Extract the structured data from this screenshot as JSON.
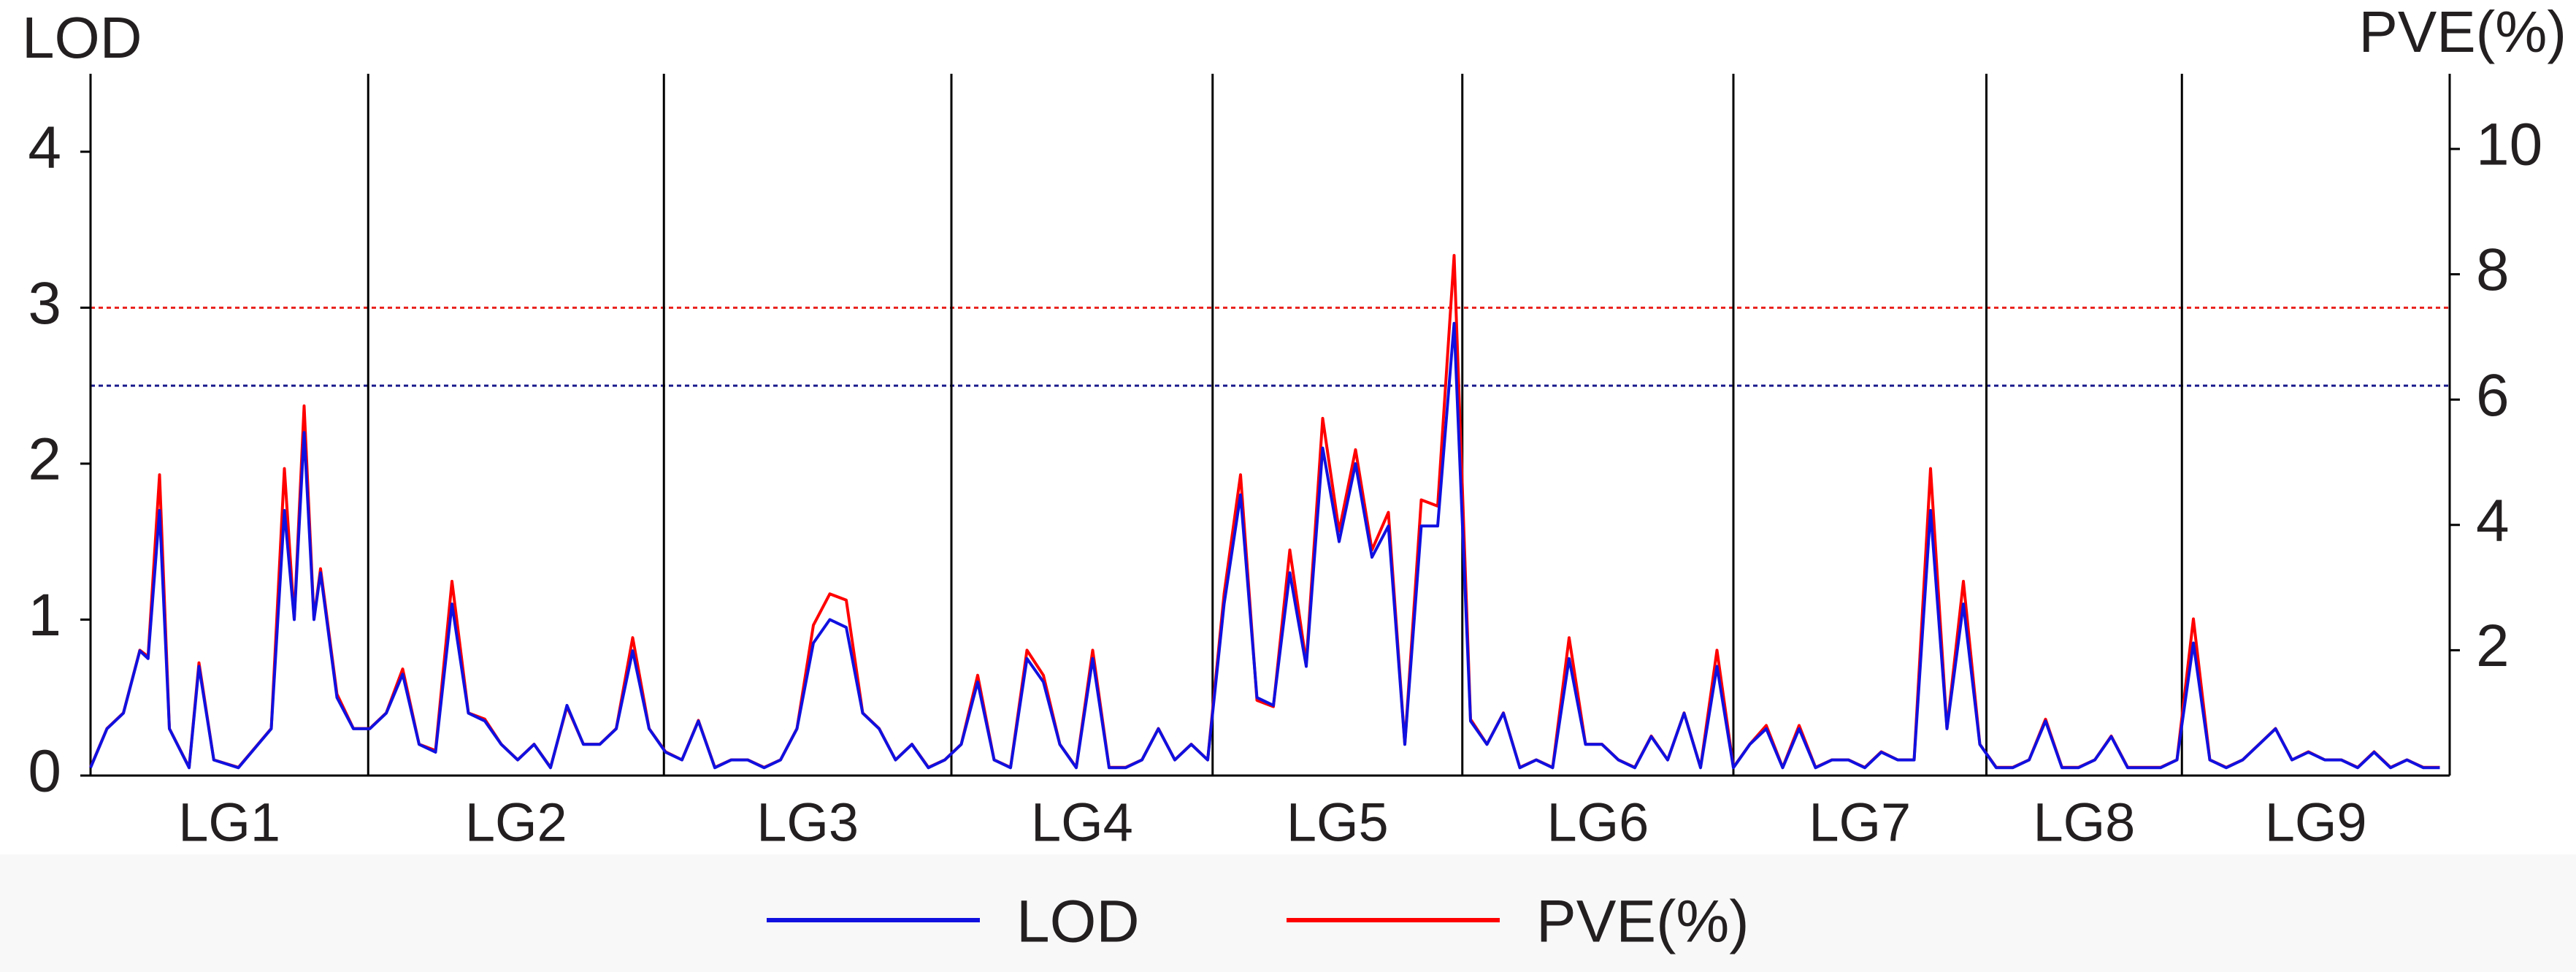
{
  "chart_data": {
    "type": "line",
    "ylabel": "LOD",
    "y2label": "PVE(%)",
    "ylim": [
      0,
      4.5
    ],
    "yticks": [
      0,
      1,
      2,
      3,
      4
    ],
    "y2lim": [
      0,
      11.2
    ],
    "y2ticks": [
      2,
      4,
      6,
      8,
      10
    ],
    "xlim": [
      0,
      1436
    ],
    "categories": [
      "LG1",
      "LG2",
      "LG3",
      "LG4",
      "LG5",
      "LG6",
      "LG7",
      "LG8",
      "LG9"
    ],
    "boundaries": [
      169,
      349,
      524,
      683,
      835,
      1000,
      1154,
      1273
    ],
    "thresholds": [
      {
        "value": 3,
        "color": "#e8201c"
      },
      {
        "value": 2.5,
        "color": "#1a1a8c"
      }
    ],
    "x": [
      0,
      10,
      20,
      30,
      35,
      42,
      48,
      60,
      66,
      75,
      90,
      110,
      118,
      124,
      130,
      136,
      140,
      150,
      160,
      170,
      180,
      190,
      200,
      210,
      220,
      230,
      240,
      250,
      260,
      270,
      280,
      290,
      300,
      310,
      320,
      330,
      340,
      350,
      360,
      370,
      380,
      390,
      400,
      410,
      420,
      430,
      440,
      450,
      460,
      470,
      480,
      490,
      500,
      510,
      520,
      530,
      540,
      550,
      560,
      570,
      580,
      590,
      600,
      610,
      620,
      630,
      640,
      650,
      660,
      670,
      680,
      690,
      700,
      710,
      720,
      730,
      740,
      750,
      760,
      770,
      780,
      790,
      800,
      810,
      820,
      830,
      840,
      850,
      860,
      870,
      880,
      890,
      900,
      910,
      920,
      930,
      940,
      950,
      960,
      970,
      980,
      990,
      1000,
      1010,
      1020,
      1030,
      1040,
      1050,
      1060,
      1070,
      1080,
      1090,
      1100,
      1110,
      1120,
      1130,
      1140,
      1150,
      1160,
      1170,
      1180,
      1190,
      1200,
      1210,
      1220,
      1230,
      1240,
      1250,
      1260,
      1270,
      1280,
      1290,
      1300,
      1310,
      1320,
      1330,
      1340,
      1350,
      1360,
      1370,
      1380,
      1390,
      1400,
      1410,
      1420,
      1430
    ],
    "series": [
      {
        "name": "PVE(%)",
        "color": "#ff0000",
        "axis": "y2",
        "values": [
          0.13,
          0.75,
          1.0,
          2.0,
          1.9,
          4.8,
          0.75,
          0.13,
          1.8,
          0.25,
          0.13,
          0.75,
          4.9,
          2.5,
          5.9,
          2.5,
          3.3,
          1.3,
          0.75,
          0.75,
          1.0,
          1.7,
          0.5,
          0.4,
          3.1,
          1.0,
          0.9,
          0.5,
          0.25,
          0.5,
          0.13,
          1.1,
          0.5,
          0.5,
          0.75,
          2.2,
          0.75,
          0.38,
          0.25,
          0.88,
          0.13,
          0.25,
          0.25,
          0.13,
          0.25,
          0.75,
          2.4,
          2.9,
          2.8,
          1.0,
          0.75,
          0.25,
          0.5,
          0.13,
          0.25,
          0.5,
          1.6,
          0.25,
          0.13,
          2.0,
          1.6,
          0.5,
          0.13,
          2.0,
          0.13,
          0.13,
          0.25,
          0.75,
          0.25,
          0.5,
          0.25,
          2.9,
          4.8,
          1.2,
          1.1,
          3.6,
          1.8,
          5.7,
          3.9,
          5.2,
          3.6,
          4.2,
          0.5,
          4.4,
          4.3,
          8.3,
          0.9,
          0.5,
          1.0,
          0.13,
          0.25,
          0.13,
          2.2,
          0.5,
          0.5,
          0.25,
          0.13,
          0.63,
          0.25,
          1.0,
          0.13,
          2.0,
          0.13,
          0.5,
          0.8,
          0.13,
          0.8,
          0.13,
          0.25,
          0.25,
          0.13,
          0.38,
          0.25,
          0.25,
          4.9,
          0.75,
          3.1,
          0.5,
          0.13,
          0.13,
          0.25,
          0.9,
          0.13,
          0.13,
          0.25,
          0.63,
          0.13,
          0.13,
          0.13,
          0.25,
          2.5,
          0.25,
          0.13,
          0.25,
          0.5,
          0.75,
          0.25,
          0.38,
          0.25,
          0.25,
          0.13,
          0.38,
          0.13,
          0.25,
          0.13,
          0.13
        ]
      },
      {
        "name": "LOD",
        "color": "#1010e0",
        "values": [
          0.05,
          0.3,
          0.4,
          0.8,
          0.75,
          1.7,
          0.3,
          0.05,
          0.7,
          0.1,
          0.05,
          0.3,
          1.7,
          1.0,
          2.2,
          1.0,
          1.3,
          0.5,
          0.3,
          0.3,
          0.4,
          0.65,
          0.2,
          0.15,
          1.1,
          0.4,
          0.35,
          0.2,
          0.1,
          0.2,
          0.05,
          0.45,
          0.2,
          0.2,
          0.3,
          0.8,
          0.3,
          0.15,
          0.1,
          0.35,
          0.05,
          0.1,
          0.1,
          0.05,
          0.1,
          0.3,
          0.85,
          1.0,
          0.95,
          0.4,
          0.3,
          0.1,
          0.2,
          0.05,
          0.1,
          0.2,
          0.6,
          0.1,
          0.05,
          0.75,
          0.6,
          0.2,
          0.05,
          0.75,
          0.05,
          0.05,
          0.1,
          0.3,
          0.1,
          0.2,
          0.1,
          1.1,
          1.8,
          0.5,
          0.45,
          1.3,
          0.7,
          2.1,
          1.5,
          2.0,
          1.4,
          1.6,
          0.2,
          1.6,
          1.6,
          2.9,
          0.35,
          0.2,
          0.4,
          0.05,
          0.1,
          0.05,
          0.75,
          0.2,
          0.2,
          0.1,
          0.05,
          0.25,
          0.1,
          0.4,
          0.05,
          0.7,
          0.05,
          0.2,
          0.3,
          0.05,
          0.3,
          0.05,
          0.1,
          0.1,
          0.05,
          0.15,
          0.1,
          0.1,
          1.7,
          0.3,
          1.1,
          0.2,
          0.05,
          0.05,
          0.1,
          0.35,
          0.05,
          0.05,
          0.1,
          0.25,
          0.05,
          0.05,
          0.05,
          0.1,
          0.85,
          0.1,
          0.05,
          0.1,
          0.2,
          0.3,
          0.1,
          0.15,
          0.1,
          0.1,
          0.05,
          0.15,
          0.05,
          0.1,
          0.05,
          0.05
        ]
      }
    ]
  }
}
